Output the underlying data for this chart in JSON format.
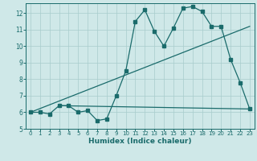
{
  "title": "",
  "xlabel": "Humidex (Indice chaleur)",
  "ylabel": "",
  "xlim": [
    -0.5,
    23.5
  ],
  "ylim": [
    5,
    12.6
  ],
  "yticks": [
    5,
    6,
    7,
    8,
    9,
    10,
    11,
    12
  ],
  "xticks": [
    0,
    1,
    2,
    3,
    4,
    5,
    6,
    7,
    8,
    9,
    10,
    11,
    12,
    13,
    14,
    15,
    16,
    17,
    18,
    19,
    20,
    21,
    22,
    23
  ],
  "bg_color": "#cfe8e8",
  "grid_color": "#a8cccc",
  "line_color": "#1a6b6b",
  "line1_x": [
    0,
    1,
    2,
    3,
    4,
    5,
    6,
    7,
    8,
    9,
    10,
    11,
    12,
    13,
    14,
    15,
    16,
    17,
    18,
    19,
    20,
    21,
    22,
    23
  ],
  "line1_y": [
    6.0,
    6.0,
    5.9,
    6.4,
    6.4,
    6.0,
    6.1,
    5.5,
    5.6,
    7.0,
    8.5,
    11.5,
    12.2,
    10.9,
    10.0,
    11.1,
    12.3,
    12.4,
    12.1,
    11.2,
    11.2,
    9.2,
    7.8,
    6.2
  ],
  "line2_x": [
    0,
    23
  ],
  "line2_y": [
    6.0,
    11.2
  ],
  "line3_x": [
    3,
    23
  ],
  "line3_y": [
    6.4,
    6.2
  ],
  "marker_size": 2.5,
  "linewidth": 0.9
}
